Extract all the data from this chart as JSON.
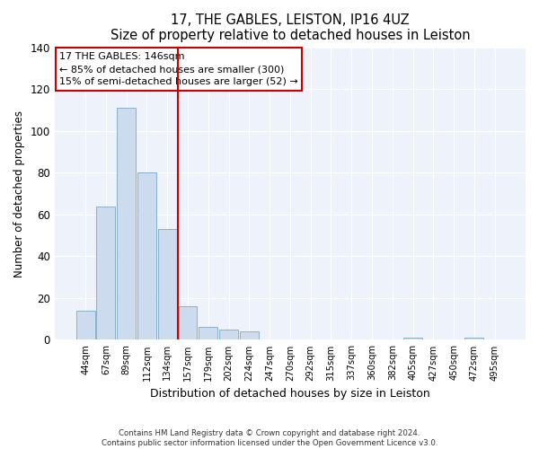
{
  "title": "17, THE GABLES, LEISTON, IP16 4UZ",
  "subtitle": "Size of property relative to detached houses in Leiston",
  "xlabel": "Distribution of detached houses by size in Leiston",
  "ylabel": "Number of detached properties",
  "bar_labels": [
    "44sqm",
    "67sqm",
    "89sqm",
    "112sqm",
    "134sqm",
    "157sqm",
    "179sqm",
    "202sqm",
    "224sqm",
    "247sqm",
    "270sqm",
    "292sqm",
    "315sqm",
    "337sqm",
    "360sqm",
    "382sqm",
    "405sqm",
    "427sqm",
    "450sqm",
    "472sqm",
    "495sqm"
  ],
  "bar_values": [
    14,
    64,
    111,
    80,
    53,
    16,
    6,
    5,
    4,
    0,
    0,
    0,
    0,
    0,
    0,
    0,
    1,
    0,
    0,
    1,
    0
  ],
  "bar_color": "#ccdcee",
  "bar_edge_color": "#8ab0cc",
  "vline_color": "#cc0000",
  "annotation_title": "17 THE GABLES: 146sqm",
  "annotation_line1": "← 85% of detached houses are smaller (300)",
  "annotation_line2": "15% of semi-detached houses are larger (52) →",
  "ylim": [
    0,
    140
  ],
  "yticks": [
    0,
    20,
    40,
    60,
    80,
    100,
    120,
    140
  ],
  "footnote1": "Contains HM Land Registry data © Crown copyright and database right 2024.",
  "footnote2": "Contains public sector information licensed under the Open Government Licence v3.0.",
  "bg_color": "#ffffff",
  "plot_bg_color": "#eef2fa"
}
